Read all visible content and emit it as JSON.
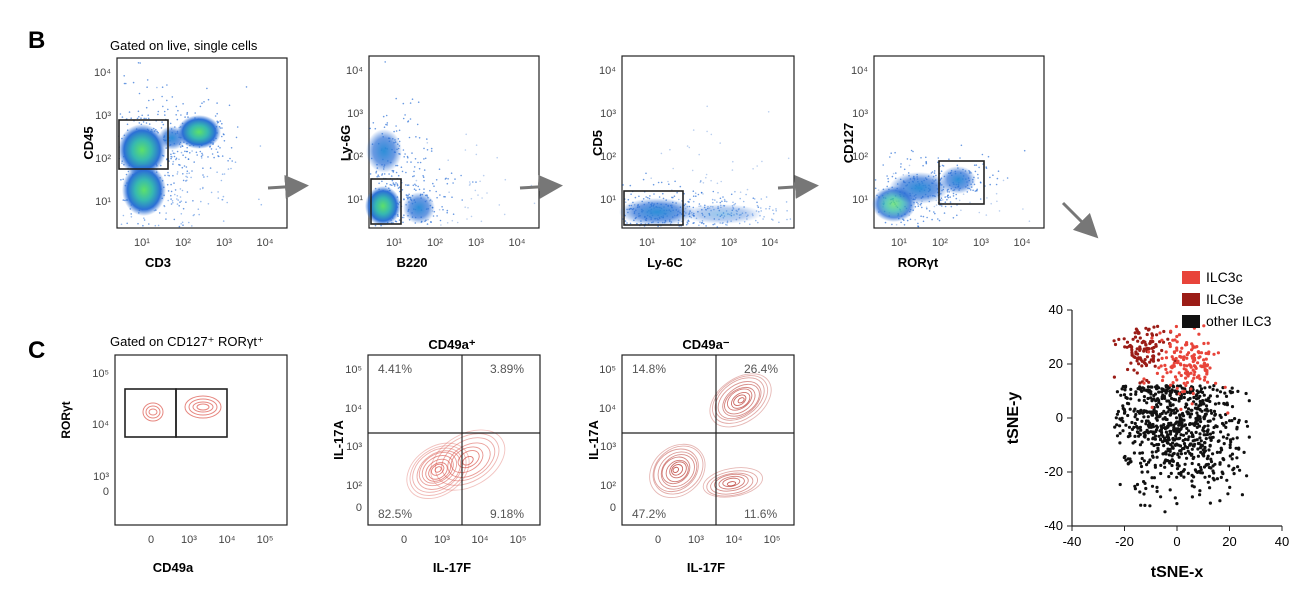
{
  "panel_b": {
    "letter": "B",
    "gate_note": "Gated on live, single cells",
    "plots": [
      {
        "xlabel": "CD3",
        "ylabel": "CD45"
      },
      {
        "xlabel": "B220",
        "ylabel": "Ly-6G"
      },
      {
        "xlabel": "Ly-6C",
        "ylabel": "CD5"
      },
      {
        "xlabel": "RORγt",
        "ylabel": "CD127"
      }
    ],
    "xticks": [
      "10¹",
      "10²",
      "10³",
      "10⁴"
    ],
    "yticks": [
      "10⁴",
      "10³",
      "10²",
      "10¹"
    ]
  },
  "panel_c": {
    "letter": "C",
    "gate_note": "Gated on CD127⁺ RORγt⁺",
    "plot1": {
      "xlabel": "CD49a",
      "ylabel": "RORγt",
      "xticks": [
        "0",
        "10³",
        "10⁴",
        "10⁵"
      ],
      "yticks": [
        "10⁵",
        "10⁴",
        "10³",
        "0"
      ]
    },
    "plot2": {
      "title": "CD49a⁺",
      "xlabel": "IL-17F",
      "ylabel": "IL-17A",
      "quadrants": {
        "tl": "4.41%",
        "tr": "3.89%",
        "bl": "82.5%",
        "br": "9.18%"
      },
      "xticks": [
        "0",
        "10³",
        "10⁴",
        "10⁵"
      ],
      "yticks": [
        "10⁵",
        "10⁴",
        "10³",
        "10²",
        "0"
      ]
    },
    "plot3": {
      "title": "CD49a⁻",
      "xlabel": "IL-17F",
      "ylabel": "IL-17A",
      "quadrants": {
        "tl": "14.8%",
        "tr": "26.4%",
        "bl": "47.2%",
        "br": "11.6%"
      },
      "xticks": [
        "0",
        "10³",
        "10⁴",
        "10⁵"
      ],
      "yticks": [
        "10⁵",
        "10⁴",
        "10³",
        "10²",
        "0"
      ]
    }
  },
  "chart_data": {
    "type": "scatter",
    "title": "",
    "xlabel": "tSNE-x",
    "ylabel": "tSNE-y",
    "xlim": [
      -40,
      40
    ],
    "ylim": [
      -40,
      40
    ],
    "xticks": [
      "-40",
      "-20",
      "0",
      "20",
      "40"
    ],
    "yticks": [
      "40",
      "20",
      "0",
      "-20",
      "-40"
    ],
    "legend_position": "top-right",
    "series": [
      {
        "name": "ILC3c",
        "color": "#e8443a",
        "center": [
          4,
          20
        ],
        "spread": [
          6,
          6
        ],
        "count": 160
      },
      {
        "name": "ILC3e",
        "color": "#9b1c16",
        "center": [
          -13,
          25
        ],
        "spread": [
          4.5,
          5
        ],
        "count": 110
      },
      {
        "name": "other ILC3",
        "color": "#111111",
        "center": [
          -2,
          -4
        ],
        "spread": [
          12,
          12
        ],
        "count": 800
      }
    ]
  }
}
